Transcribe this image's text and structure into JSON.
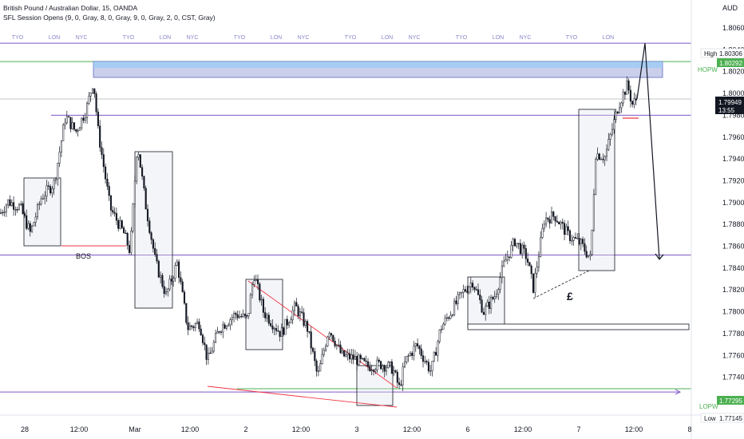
{
  "header": {
    "title": "British Pound / Australian Dollar, 15, OANDA",
    "indicator": "SFL Session Opens (9, 0, Gray, 8, 0, Gray, 9, 0, Gray, 2, 0, CST, Gray)"
  },
  "colors": {
    "background": "#ffffff",
    "candle": "#131722",
    "session_line": "#7e57c2",
    "green_line": "#4caf50",
    "red_line": "#f23645",
    "zone_fill": "#9fa8da",
    "zone_top": "#90caf9"
  },
  "chart_data": {
    "type": "candlestick",
    "title": "British Pound / Australian Dollar, 15, OANDA",
    "currency": "AUD",
    "ylim": [
      1.7708,
      1.8074
    ],
    "y_ticks": [
      "1.80600",
      "1.80400",
      "1.80200",
      "1.80000",
      "1.79800",
      "1.79600",
      "1.79400",
      "1.79200",
      "1.79000",
      "1.78800",
      "1.78600",
      "1.78400",
      "1.78200",
      "1.78000",
      "1.77800",
      "1.77600",
      "1.77400",
      "1.77200"
    ],
    "x_ticks": [
      "28",
      "12:00",
      "Mar",
      "12:00",
      "2",
      "12:00",
      "3",
      "12:00",
      "6",
      "12:00",
      "7",
      "12:00",
      "8"
    ],
    "session_labels": [
      "TYO",
      "LON",
      "NYC",
      "TYO",
      "LON",
      "NYC",
      "TYO",
      "LON",
      "NYC",
      "TYO",
      "LON",
      "NYC",
      "TYO",
      "LON",
      "NYC",
      "TYO",
      "LON"
    ],
    "price_path": [
      {
        "t": 0,
        "p": 1.789
      },
      {
        "t": 10,
        "p": 1.7901
      },
      {
        "t": 25,
        "p": 1.7896
      },
      {
        "t": 38,
        "p": 1.7872
      },
      {
        "t": 52,
        "p": 1.7905
      },
      {
        "t": 68,
        "p": 1.7918
      },
      {
        "t": 82,
        "p": 1.7979
      },
      {
        "t": 95,
        "p": 1.7965
      },
      {
        "t": 108,
        "p": 1.7985
      },
      {
        "t": 117,
        "p": 1.8012
      },
      {
        "t": 123,
        "p": 1.7965
      },
      {
        "t": 138,
        "p": 1.7895
      },
      {
        "t": 155,
        "p": 1.7872
      },
      {
        "t": 163,
        "p": 1.7855
      },
      {
        "t": 172,
        "p": 1.7955
      },
      {
        "t": 182,
        "p": 1.79
      },
      {
        "t": 195,
        "p": 1.7845
      },
      {
        "t": 208,
        "p": 1.7815
      },
      {
        "t": 222,
        "p": 1.7845
      },
      {
        "t": 235,
        "p": 1.7785
      },
      {
        "t": 250,
        "p": 1.779
      },
      {
        "t": 260,
        "p": 1.7755
      },
      {
        "t": 275,
        "p": 1.7785
      },
      {
        "t": 295,
        "p": 1.7798
      },
      {
        "t": 310,
        "p": 1.7793
      },
      {
        "t": 318,
        "p": 1.7835
      },
      {
        "t": 330,
        "p": 1.78
      },
      {
        "t": 352,
        "p": 1.778
      },
      {
        "t": 370,
        "p": 1.7805
      },
      {
        "t": 385,
        "p": 1.7785
      },
      {
        "t": 398,
        "p": 1.774
      },
      {
        "t": 412,
        "p": 1.7785
      },
      {
        "t": 428,
        "p": 1.776
      },
      {
        "t": 445,
        "p": 1.7757
      },
      {
        "t": 460,
        "p": 1.775
      },
      {
        "t": 478,
        "p": 1.7752
      },
      {
        "t": 492,
        "p": 1.7748
      },
      {
        "t": 500,
        "p": 1.773
      },
      {
        "t": 508,
        "p": 1.7755
      },
      {
        "t": 522,
        "p": 1.777
      },
      {
        "t": 540,
        "p": 1.7745
      },
      {
        "t": 552,
        "p": 1.7785
      },
      {
        "t": 565,
        "p": 1.78
      },
      {
        "t": 580,
        "p": 1.7818
      },
      {
        "t": 592,
        "p": 1.7828
      },
      {
        "t": 606,
        "p": 1.78
      },
      {
        "t": 620,
        "p": 1.7815
      },
      {
        "t": 632,
        "p": 1.7845
      },
      {
        "t": 645,
        "p": 1.7865
      },
      {
        "t": 660,
        "p": 1.785
      },
      {
        "t": 668,
        "p": 1.7822
      },
      {
        "t": 682,
        "p": 1.7885
      },
      {
        "t": 695,
        "p": 1.7888
      },
      {
        "t": 712,
        "p": 1.787
      },
      {
        "t": 728,
        "p": 1.7862
      },
      {
        "t": 740,
        "p": 1.7848
      },
      {
        "t": 746,
        "p": 1.7945
      },
      {
        "t": 758,
        "p": 1.7942
      },
      {
        "t": 766,
        "p": 1.7965
      },
      {
        "t": 775,
        "p": 1.799
      },
      {
        "t": 786,
        "p": 1.8008
      },
      {
        "t": 792,
        "p": 1.799
      },
      {
        "t": 798,
        "p": 1.7995
      }
    ],
    "levels": [
      {
        "name": "Session open",
        "value": 1.8046
      },
      {
        "name": "HOPW",
        "value": 1.80292
      },
      {
        "name": "Session open",
        "value": 1.798
      },
      {
        "name": "Session open",
        "value": 1.7852
      },
      {
        "name": "Session open",
        "value": 1.77265
      },
      {
        "name": "LOPW",
        "value": 1.77295
      }
    ],
    "price_tags": [
      {
        "label": "High",
        "value": "1.80306"
      },
      {
        "label": "",
        "value": "1.80292"
      },
      {
        "label": "",
        "value": "1.79949"
      },
      {
        "label": "",
        "value": "13:55"
      },
      {
        "label": "",
        "value": "1.77295"
      },
      {
        "label": "Low",
        "value": "1.77145"
      }
    ],
    "annotations": [
      "BOS",
      "HOPW",
      "LOPW",
      "£"
    ],
    "projection": [
      {
        "t": 798,
        "p": 1.7995
      },
      {
        "t": 808,
        "p": 1.8046
      },
      {
        "t": 826,
        "p": 1.7848
      }
    ]
  }
}
